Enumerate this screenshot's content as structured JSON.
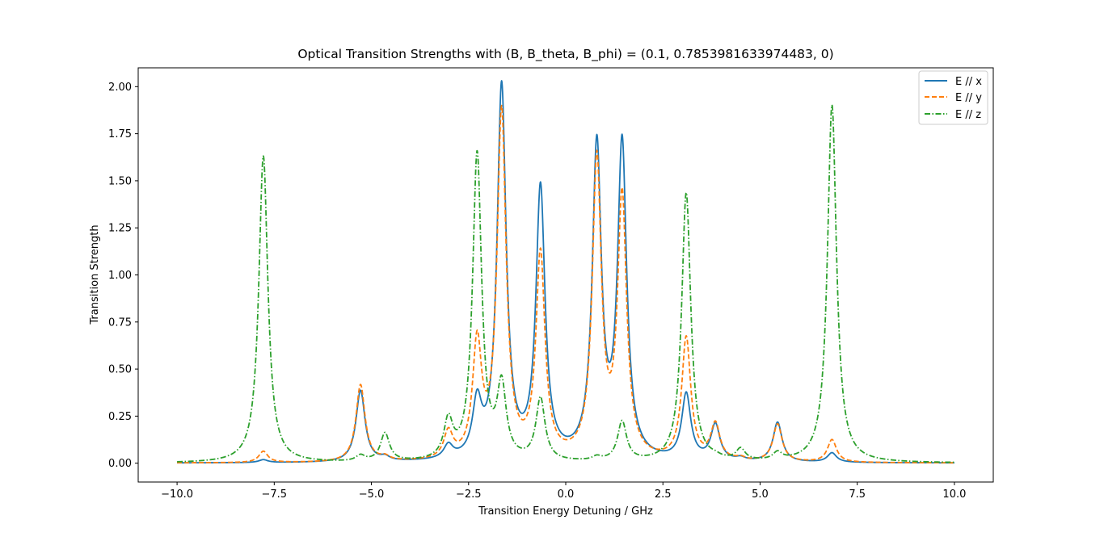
{
  "chart_data": {
    "type": "line",
    "title": "Optical Transition Strengths with (B, B_theta, B_phi) = (0.1, 0.7853981633974483, 0)",
    "xlabel": "Transition Energy Detuning / GHz",
    "ylabel": "Transition Strength",
    "xlim": [
      -11.0,
      11.0
    ],
    "ylim": [
      -0.1,
      2.1
    ],
    "xticks": [
      -10.0,
      -7.5,
      -5.0,
      -2.5,
      0.0,
      2.5,
      5.0,
      7.5,
      10.0
    ],
    "xtick_labels": [
      "−10.0",
      "−7.5",
      "−5.0",
      "−2.5",
      "0.0",
      "2.5",
      "5.0",
      "7.5",
      "10.0"
    ],
    "yticks": [
      0.0,
      0.25,
      0.5,
      0.75,
      1.0,
      1.25,
      1.5,
      1.75,
      2.0
    ],
    "ytick_labels": [
      "0.00",
      "0.25",
      "0.50",
      "0.75",
      "1.00",
      "1.25",
      "1.50",
      "1.75",
      "2.00"
    ],
    "grid": false,
    "legend_position": "top-right",
    "linewidth_hint": "Lorentzian peaks, gamma ~0.14 GHz",
    "series": [
      {
        "name": "E // x",
        "color": "#1f77b4",
        "style": "solid",
        "peaks": [
          {
            "x": -7.78,
            "y": 0.015
          },
          {
            "x": -5.28,
            "y": 0.38
          },
          {
            "x": -4.65,
            "y": 0.02
          },
          {
            "x": -3.02,
            "y": 0.07
          },
          {
            "x": -2.28,
            "y": 0.28
          },
          {
            "x": -1.65,
            "y": 1.98
          },
          {
            "x": -0.65,
            "y": 1.43
          },
          {
            "x": 0.8,
            "y": 1.65
          },
          {
            "x": 1.45,
            "y": 1.66
          },
          {
            "x": 3.1,
            "y": 0.35
          },
          {
            "x": 3.85,
            "y": 0.19
          },
          {
            "x": 4.5,
            "y": 0.015
          },
          {
            "x": 5.45,
            "y": 0.21
          },
          {
            "x": 6.85,
            "y": 0.05
          }
        ]
      },
      {
        "name": "E // y",
        "color": "#ff7f0e",
        "style": "dashed",
        "peaks": [
          {
            "x": -7.78,
            "y": 0.06
          },
          {
            "x": -5.28,
            "y": 0.41
          },
          {
            "x": -4.65,
            "y": 0.02
          },
          {
            "x": -3.02,
            "y": 0.14
          },
          {
            "x": -2.28,
            "y": 0.6
          },
          {
            "x": -1.65,
            "y": 1.84
          },
          {
            "x": -0.65,
            "y": 1.08
          },
          {
            "x": 0.8,
            "y": 1.58
          },
          {
            "x": 1.45,
            "y": 1.38
          },
          {
            "x": 3.1,
            "y": 0.65
          },
          {
            "x": 3.85,
            "y": 0.19
          },
          {
            "x": 4.5,
            "y": 0.015
          },
          {
            "x": 5.45,
            "y": 0.2
          },
          {
            "x": 6.85,
            "y": 0.12
          }
        ]
      },
      {
        "name": "E // z",
        "color": "#2ca02c",
        "style": "dashdot",
        "peaks": [
          {
            "x": -7.78,
            "y": 1.63
          },
          {
            "x": -5.28,
            "y": 0.03
          },
          {
            "x": -4.65,
            "y": 0.15
          },
          {
            "x": -3.02,
            "y": 0.2
          },
          {
            "x": -2.28,
            "y": 1.63
          },
          {
            "x": -1.65,
            "y": 0.38
          },
          {
            "x": -0.65,
            "y": 0.33
          },
          {
            "x": 0.8,
            "y": 0.02
          },
          {
            "x": 1.45,
            "y": 0.21
          },
          {
            "x": 3.1,
            "y": 1.43
          },
          {
            "x": 3.85,
            "y": 0.01
          },
          {
            "x": 4.5,
            "y": 0.06
          },
          {
            "x": 5.45,
            "y": 0.04
          },
          {
            "x": 6.85,
            "y": 1.9
          }
        ]
      }
    ]
  }
}
